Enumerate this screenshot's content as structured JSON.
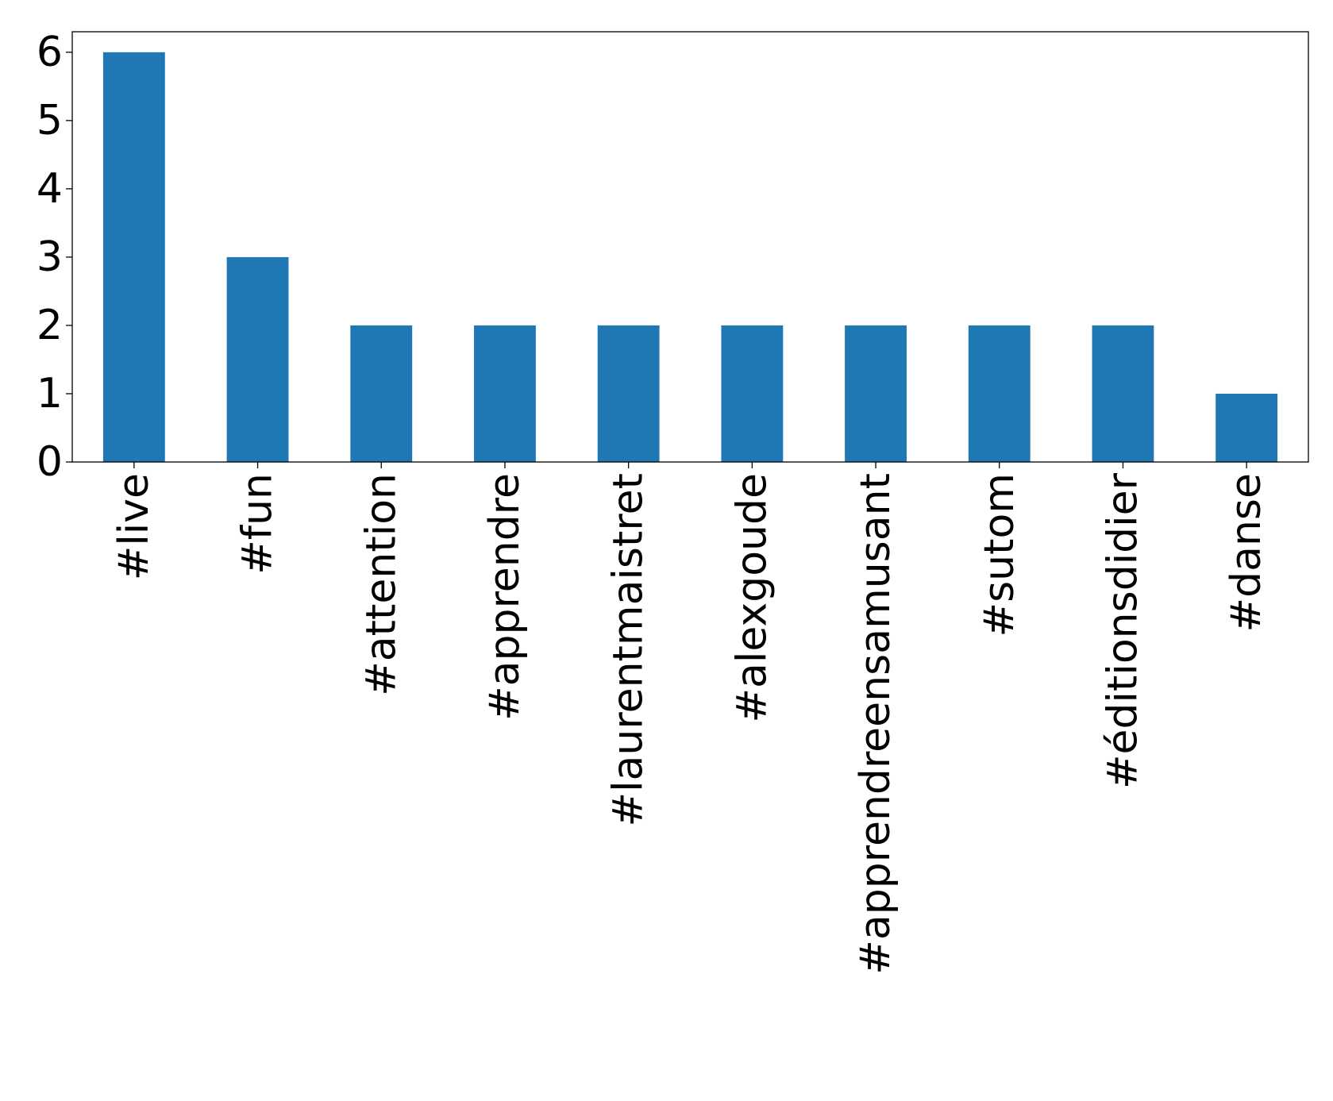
{
  "chart_data": {
    "type": "bar",
    "title": "",
    "xlabel": "",
    "ylabel": "",
    "categories": [
      "#live",
      "#fun",
      "#attention",
      "#apprendre",
      "#laurentmaistret",
      "#alexgoude",
      "#apprendreensamusant",
      "#sutom",
      "#éditionsdidier",
      "#danse"
    ],
    "values": [
      6,
      3,
      2,
      2,
      2,
      2,
      2,
      2,
      2,
      1
    ],
    "ylim": [
      0,
      6.3
    ],
    "yticks": [
      "0",
      "1",
      "2",
      "3",
      "4",
      "5",
      "6"
    ],
    "grid": false,
    "legend": "none",
    "bar_color": "#1f77b4"
  }
}
